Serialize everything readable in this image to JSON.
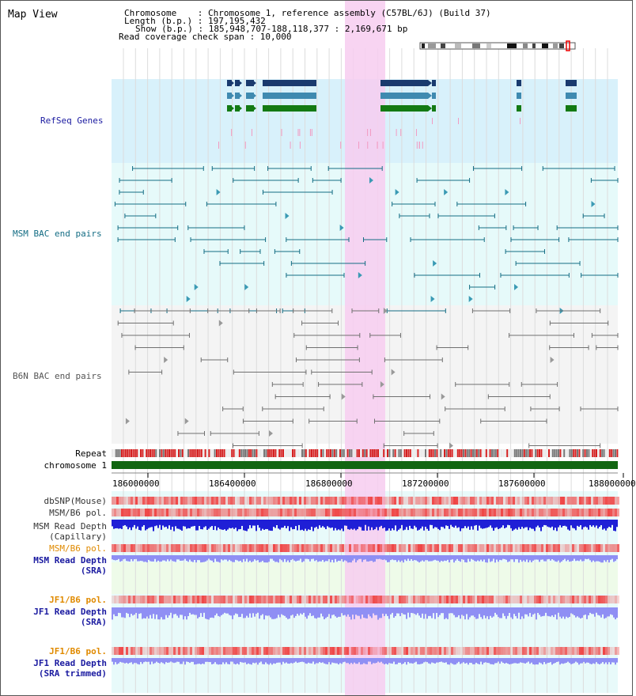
{
  "title": "Map View",
  "header": {
    "chromosome": "Chromosome    : Chromosome 1, reference assembly (C57BL/6J) (Build 37)",
    "length": "Length (b.p.) : 197,195,432",
    "show": "Show (b.p.) : 185,948,707-188,118,377 : 2,169,671 bp",
    "coverage": "Read coverage check span : 10,000"
  },
  "tracks": {
    "refseq": "RefSeq Genes",
    "msm_bac": "MSM BAC end pairs",
    "b6n_bac": "B6N BAC end pairs",
    "repeat": "Repeat",
    "chromosome": "chromosome 1",
    "dbsnp": "dbSNP(Mouse)",
    "msm_b6_pol_1": "MSM/B6 pol.",
    "msm_read_depth_1": "MSM Read Depth",
    "msm_read_depth_1_sub": "(Capillary)",
    "msm_b6_pol_2": "MSM/B6 pol.",
    "msm_read_depth_2": "MSM Read Depth",
    "msm_read_depth_2_sub": "(SRA)",
    "jf1_b6_pol_1": "JF1/B6 pol.",
    "jf1_read_depth_1": "JF1 Read Depth",
    "jf1_read_depth_1_sub": "(SRA)",
    "jf1_b6_pol_2": "JF1/B6 pol.",
    "jf1_read_depth_2": "JF1 Read Depth",
    "jf1_read_depth_2_sub": "(SRA trimmed)"
  },
  "ruler": {
    "ticks": [
      "186000000",
      "186400000",
      "186800000",
      "187200000",
      "187600000",
      "188000000"
    ]
  },
  "colors": {
    "refseq_bg": "#d8f1fb",
    "msm_bg": "#e6fafa",
    "b6n_bg": "#f4f4f4",
    "highlight": "#f7cdf0",
    "chrom_bar": "#116611",
    "refseq_dark": "#1a3a6e",
    "refseq_mid": "#3f8ab0",
    "refseq_green": "#137a13",
    "msm_line": "#146d84",
    "b6n_line": "#707070",
    "depth_capillary": "#1f1fd6",
    "depth_sra": "#8f8ff4",
    "pol_red": "#ef4545"
  }
}
